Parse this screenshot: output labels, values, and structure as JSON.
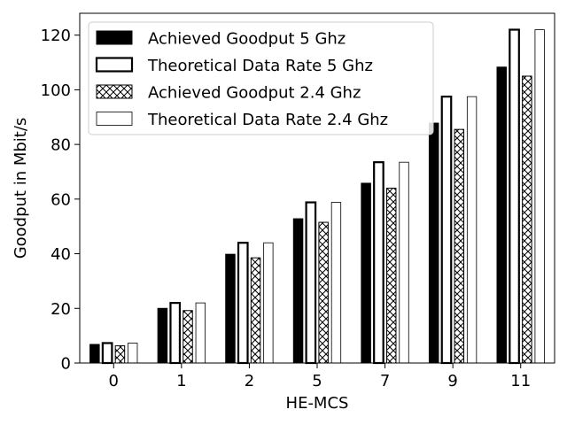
{
  "chart_data": {
    "type": "bar",
    "title": "",
    "xlabel": "HE-MCS",
    "ylabel": "Goodput in Mbit/s",
    "categories": [
      "0",
      "1",
      "2",
      "5",
      "7",
      "9",
      "11"
    ],
    "ylim": [
      0,
      128
    ],
    "yticks": [
      0,
      20,
      40,
      60,
      80,
      100,
      120
    ],
    "grid": false,
    "legend_position": "top-left",
    "series": [
      {
        "name": "Achieved Goodput 5 Ghz",
        "style": "solid-black",
        "values": [
          6.8,
          20.0,
          39.8,
          52.8,
          65.8,
          87.8,
          108.3
        ]
      },
      {
        "name": "Theoretical Data Rate 5 Ghz",
        "style": "white-thick-border",
        "values": [
          7.3,
          22.0,
          44.0,
          58.8,
          73.5,
          97.5,
          122.0
        ]
      },
      {
        "name": "Achieved Goodput 2.4 Ghz",
        "style": "cross-hatch",
        "values": [
          6.3,
          19.2,
          38.5,
          51.5,
          64.0,
          85.5,
          105.0
        ]
      },
      {
        "name": "Theoretical Data Rate 2.4 Ghz",
        "style": "white-thin-border",
        "values": [
          7.3,
          22.0,
          44.0,
          58.8,
          73.5,
          97.5,
          122.0
        ]
      }
    ]
  }
}
